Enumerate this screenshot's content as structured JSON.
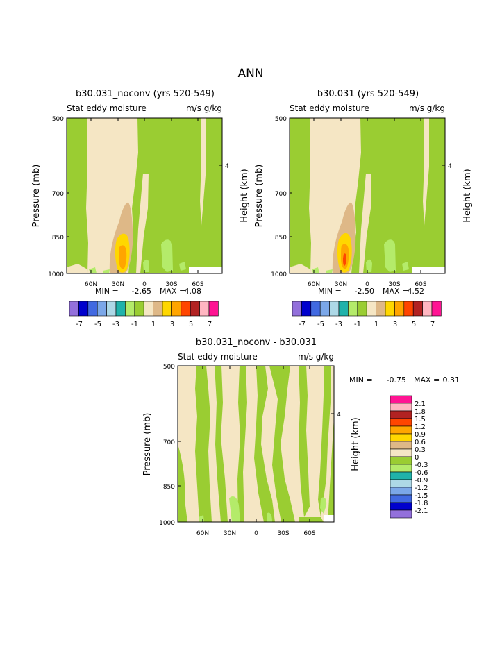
{
  "page_title": "ANN",
  "colors": {
    "c_neg7": "#9370db",
    "c_neg6": "#0000cd",
    "c_neg5": "#4169e1",
    "c_neg4": "#7ba7e8",
    "c_neg3": "#add8e6",
    "c_neg2": "#20b2aa",
    "c_neg1": "#b4eb6a",
    "c_zero": "#9acd32",
    "c_pos1": "#f5e6c4",
    "c_pos2": "#deb887",
    "c_pos3": "#ffd700",
    "c_pos4": "#ffa500",
    "c_pos5": "#ff4500",
    "c_pos6": "#b22222",
    "c_pos7": "#ffb6c1",
    "c_pos8": "#ff1493"
  },
  "chart_data": [
    {
      "type": "heatmap",
      "title": "b30.031_noconv (yrs 520-549)",
      "subtitle_left": "Stat eddy moisture",
      "subtitle_right": "m/s g/kg",
      "ylabel": "Pressure (mb)",
      "ylabel_right": "Height (km)",
      "y_ticks": [
        "500",
        "700",
        "850",
        "1000"
      ],
      "y_right_ticks": [
        "4"
      ],
      "x_ticks": [
        "60N",
        "30N",
        "0",
        "30S",
        "60S"
      ],
      "min_label": "MIN =",
      "min_value": "-2.65",
      "max_label": "MAX =",
      "max_value": "4.08",
      "colorbar_labels": [
        "-7",
        "-5",
        "-3",
        "-1",
        "1",
        "3",
        "5",
        "7"
      ]
    },
    {
      "type": "heatmap",
      "title": "b30.031 (yrs 520-549)",
      "subtitle_left": "Stat eddy moisture",
      "subtitle_right": "m/s g/kg",
      "ylabel": "Pressure (mb)",
      "ylabel_right": "Height (km)",
      "y_ticks": [
        "500",
        "700",
        "850",
        "1000"
      ],
      "y_right_ticks": [
        "4"
      ],
      "x_ticks": [
        "60N",
        "30N",
        "0",
        "30S",
        "60S"
      ],
      "min_label": "MIN =",
      "min_value": "-2.50",
      "max_label": "MAX =",
      "max_value": "4.52",
      "colorbar_labels": [
        "-7",
        "-5",
        "-3",
        "-1",
        "1",
        "3",
        "5",
        "7"
      ]
    },
    {
      "type": "heatmap",
      "title": "b30.031_noconv - b30.031",
      "subtitle_left": "Stat eddy moisture",
      "subtitle_right": "m/s g/kg",
      "ylabel": "Pressure (mb)",
      "ylabel_right": "Height (km)",
      "y_ticks": [
        "500",
        "700",
        "850",
        "1000"
      ],
      "y_right_ticks": [
        "4"
      ],
      "x_ticks": [
        "60N",
        "30N",
        "0",
        "30S",
        "60S"
      ],
      "min_label": "MIN =",
      "min_value": "-0.75",
      "max_label": "MAX =",
      "max_value": "0.31",
      "colorbar_labels": [
        "2.1",
        "1.8",
        "1.5",
        "1.2",
        "0.9",
        "0.6",
        "0.3",
        "0",
        "-0.3",
        "-0.6",
        "-0.9",
        "-1.2",
        "-1.5",
        "-1.8",
        "-2.1"
      ]
    }
  ]
}
